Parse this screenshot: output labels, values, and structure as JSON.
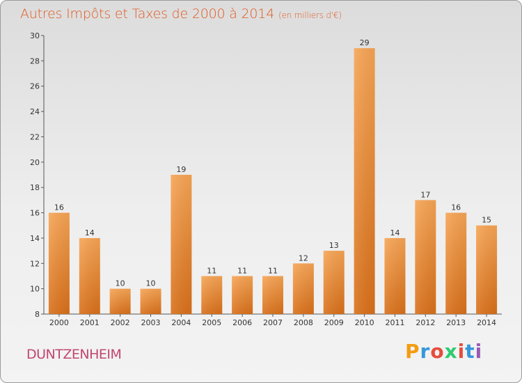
{
  "chart_data": {
    "type": "bar",
    "title": "Autres Impôts et Taxes de 2000 à 2014",
    "subtitle": "(en milliers d'€)",
    "xlabel": "",
    "ylabel": "",
    "categories": [
      "2000",
      "2001",
      "2002",
      "2003",
      "2004",
      "2005",
      "2006",
      "2007",
      "2008",
      "2009",
      "2010",
      "2011",
      "2012",
      "2013",
      "2014"
    ],
    "values": [
      16,
      14,
      10,
      10,
      19,
      11,
      11,
      11,
      12,
      13,
      29,
      14,
      17,
      16,
      15
    ],
    "ylim": [
      8,
      30
    ],
    "yticks": [
      8,
      10,
      12,
      14,
      16,
      18,
      20,
      22,
      24,
      26,
      28,
      30
    ],
    "grid": false,
    "bar_color": "#f39c4b"
  },
  "footer": {
    "commune": "DUNTZENHEIM",
    "logo_text": "Proxiti",
    "logo_colors": [
      "#f39c12",
      "#3498db",
      "#e74c3c",
      "#2ecc71",
      "#e74c3c",
      "#3498db",
      "#9b59b6"
    ]
  }
}
